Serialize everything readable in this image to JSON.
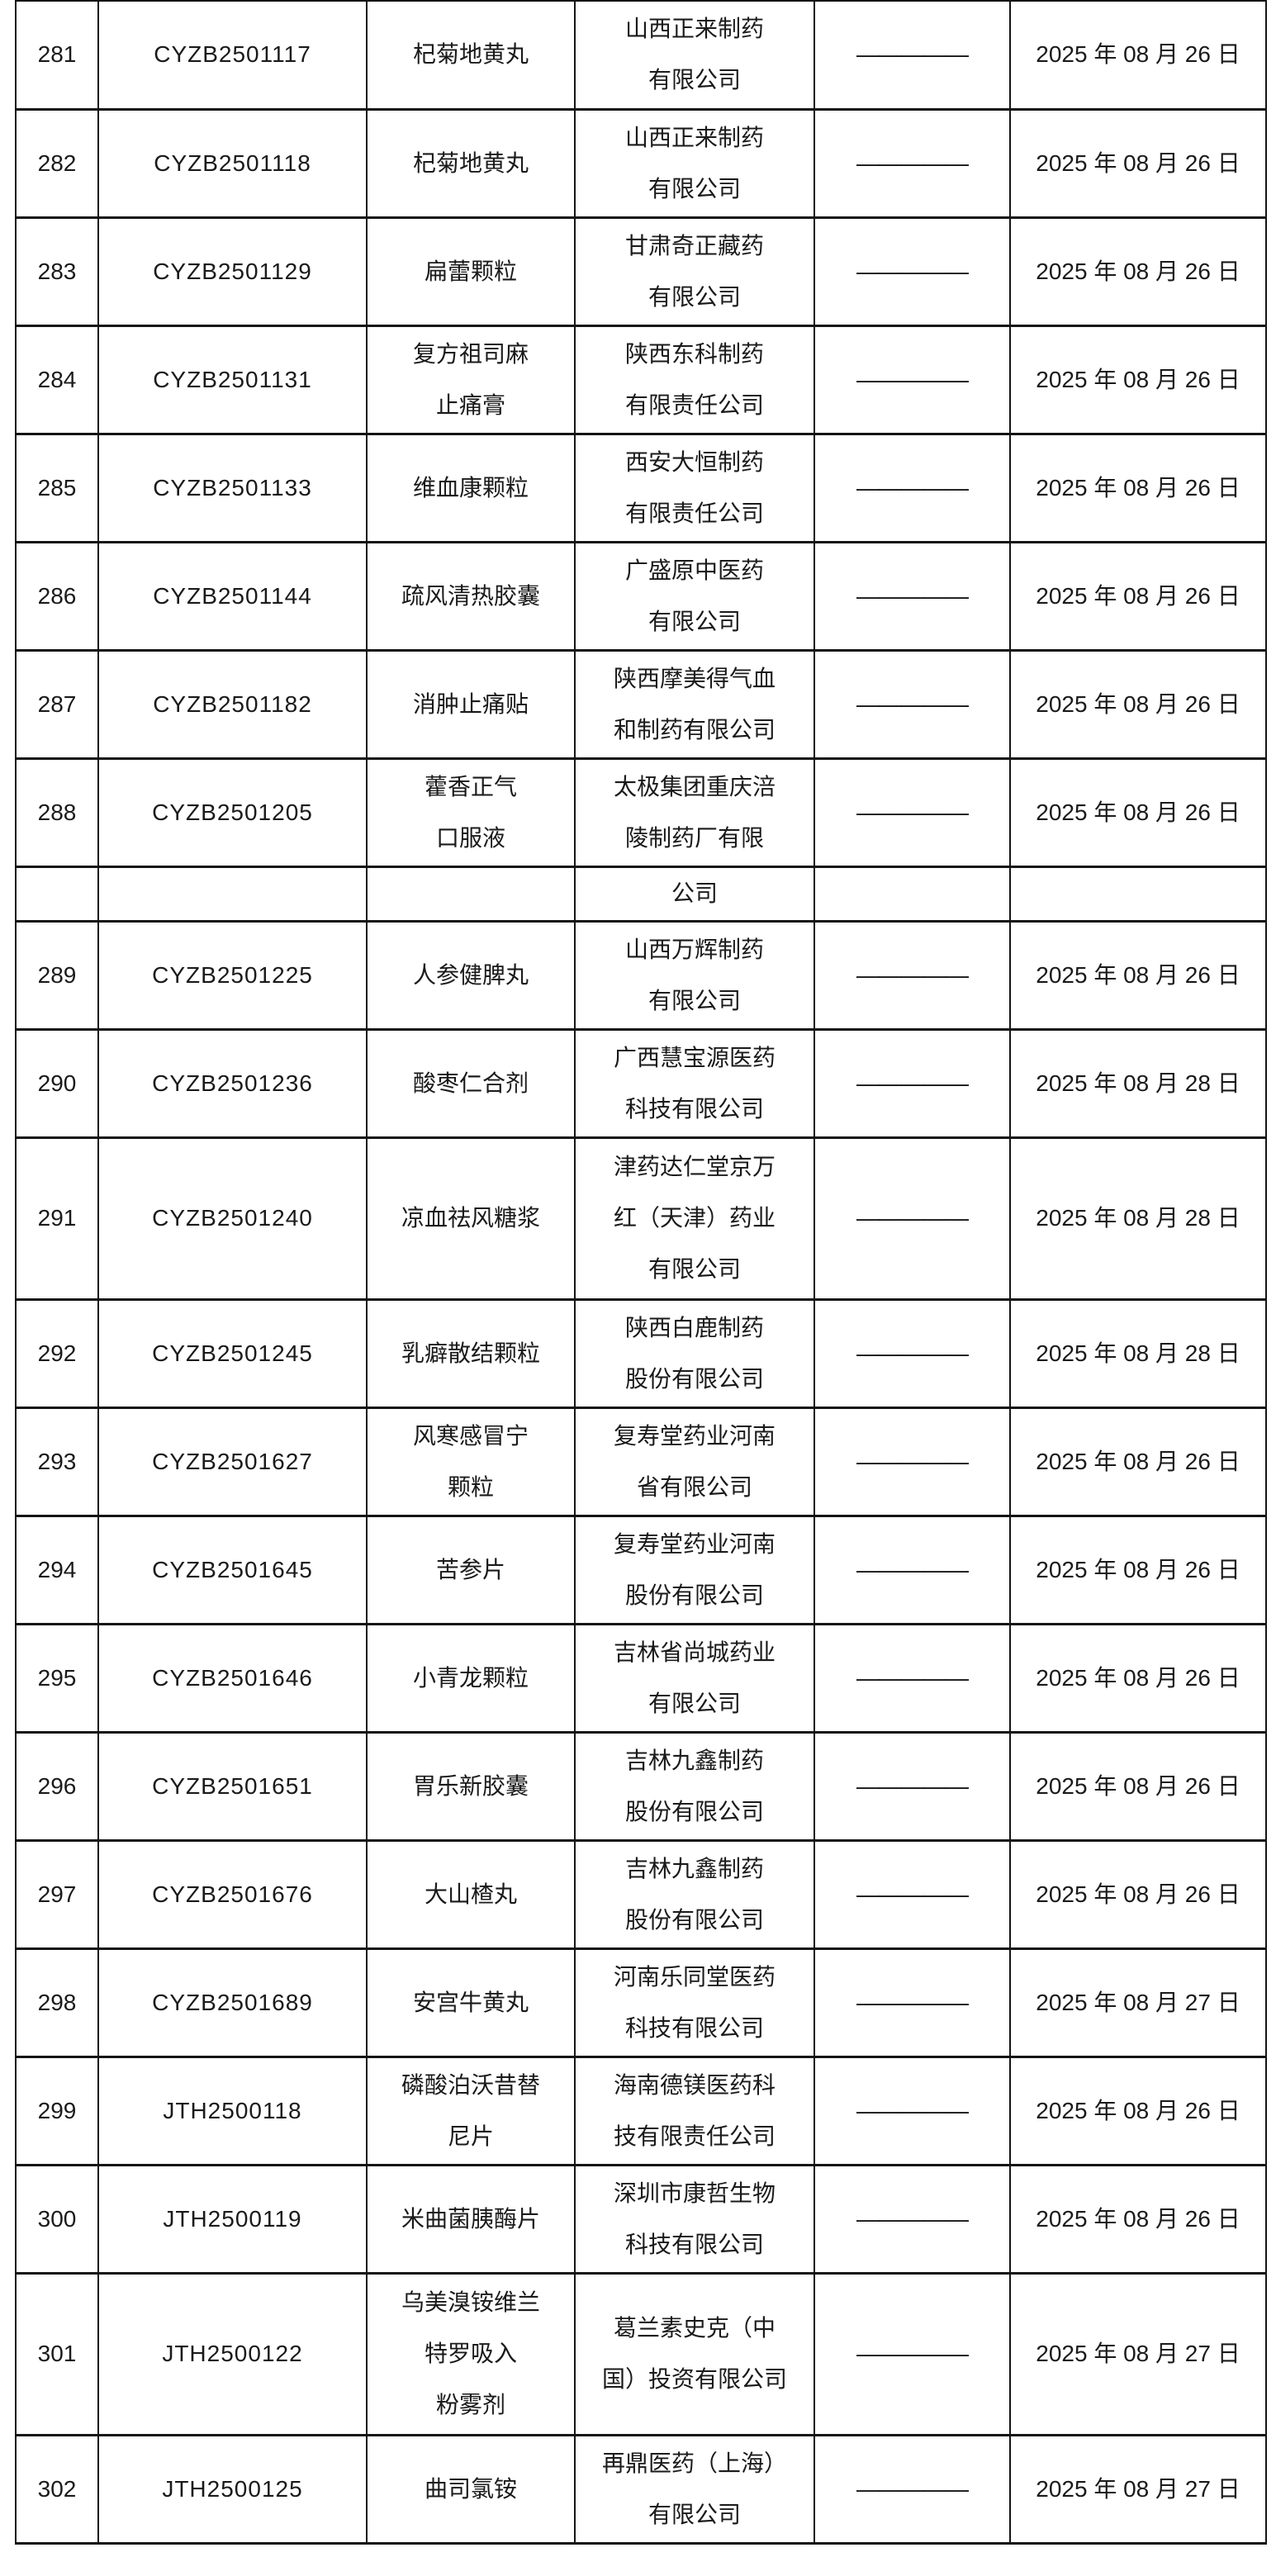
{
  "page": {
    "background": "#ffffff",
    "text_color": "#1a1a1a",
    "border_color": "#141414"
  },
  "table": {
    "rows": [
      {
        "no": "281",
        "reg": "CYZB2501117",
        "drug": [
          "杞菊地黄丸"
        ],
        "company": [
          "山西正来制药",
          "有限公司"
        ],
        "dash": "—————",
        "date": "2025 年 08 月 26 日"
      },
      {
        "no": "282",
        "reg": "CYZB2501118",
        "drug": [
          "杞菊地黄丸"
        ],
        "company": [
          "山西正来制药",
          "有限公司"
        ],
        "dash": "—————",
        "date": "2025 年 08 月 26 日"
      },
      {
        "no": "283",
        "reg": "CYZB2501129",
        "drug": [
          "扁蕾颗粒"
        ],
        "company": [
          "甘肃奇正藏药",
          "有限公司"
        ],
        "dash": "—————",
        "date": "2025 年 08 月 26 日"
      },
      {
        "no": "284",
        "reg": "CYZB2501131",
        "drug": [
          "复方祖司麻",
          "止痛膏"
        ],
        "company": [
          "陕西东科制药",
          "有限责任公司"
        ],
        "dash": "—————",
        "date": "2025 年 08 月 26 日"
      },
      {
        "no": "285",
        "reg": "CYZB2501133",
        "drug": [
          "维血康颗粒"
        ],
        "company": [
          "西安大恒制药",
          "有限责任公司"
        ],
        "dash": "—————",
        "date": "2025 年 08 月 26 日"
      },
      {
        "no": "286",
        "reg": "CYZB2501144",
        "drug": [
          "疏风清热胶囊"
        ],
        "company": [
          "广盛原中医药",
          "有限公司"
        ],
        "dash": "—————",
        "date": "2025 年 08 月 26 日"
      },
      {
        "no": "287",
        "reg": "CYZB2501182",
        "drug": [
          "消肿止痛贴"
        ],
        "company": [
          "陕西摩美得气血",
          "和制药有限公司"
        ],
        "dash": "—————",
        "date": "2025 年 08 月 26 日"
      },
      {
        "no": "288",
        "reg": "CYZB2501205",
        "drug": [
          "藿香正气",
          "口服液"
        ],
        "company": [
          "太极集团重庆涪",
          "陵制药厂有限"
        ],
        "dash": "—————",
        "date": "2025 年 08 月 26 日"
      },
      {
        "no": "",
        "reg": "",
        "drug": [],
        "company": [
          "公司"
        ],
        "dash": "",
        "date": ""
      },
      {
        "no": "289",
        "reg": "CYZB2501225",
        "drug": [
          "人参健脾丸"
        ],
        "company": [
          "山西万辉制药",
          "有限公司"
        ],
        "dash": "—————",
        "date": "2025 年 08 月 26 日"
      },
      {
        "no": "290",
        "reg": "CYZB2501236",
        "drug": [
          "酸枣仁合剂"
        ],
        "company": [
          "广西慧宝源医药",
          "科技有限公司"
        ],
        "dash": "—————",
        "date": "2025 年 08 月 28 日"
      },
      {
        "no": "291",
        "reg": "CYZB2501240",
        "drug": [
          "凉血祛风糖浆"
        ],
        "company": [
          "津药达仁堂京万",
          "红（天津）药业",
          "有限公司"
        ],
        "dash": "—————",
        "date": "2025 年 08 月 28 日"
      },
      {
        "no": "292",
        "reg": "CYZB2501245",
        "drug": [
          "乳癖散结颗粒"
        ],
        "company": [
          "陕西白鹿制药",
          "股份有限公司"
        ],
        "dash": "—————",
        "date": "2025 年 08 月 28 日"
      },
      {
        "no": "293",
        "reg": "CYZB2501627",
        "drug": [
          "风寒感冒宁",
          "颗粒"
        ],
        "company": [
          "复寿堂药业河南",
          "省有限公司"
        ],
        "dash": "—————",
        "date": "2025 年 08 月 26 日"
      },
      {
        "no": "294",
        "reg": "CYZB2501645",
        "drug": [
          "苦参片"
        ],
        "company": [
          "复寿堂药业河南",
          "股份有限公司"
        ],
        "dash": "—————",
        "date": "2025 年 08 月 26 日"
      },
      {
        "no": "295",
        "reg": "CYZB2501646",
        "drug": [
          "小青龙颗粒"
        ],
        "company": [
          "吉林省尚城药业",
          "有限公司"
        ],
        "dash": "—————",
        "date": "2025 年 08 月 26 日"
      },
      {
        "no": "296",
        "reg": "CYZB2501651",
        "drug": [
          "胃乐新胶囊"
        ],
        "company": [
          "吉林九鑫制药",
          "股份有限公司"
        ],
        "dash": "—————",
        "date": "2025 年 08 月 26 日"
      },
      {
        "no": "297",
        "reg": "CYZB2501676",
        "drug": [
          "大山楂丸"
        ],
        "company": [
          "吉林九鑫制药",
          "股份有限公司"
        ],
        "dash": "—————",
        "date": "2025 年 08 月 26 日"
      },
      {
        "no": "298",
        "reg": "CYZB2501689",
        "drug": [
          "安宫牛黄丸"
        ],
        "company": [
          "河南乐同堂医药",
          "科技有限公司"
        ],
        "dash": "—————",
        "date": "2025 年 08 月 27 日"
      },
      {
        "no": "299",
        "reg": "JTH2500118",
        "drug": [
          "磷酸泊沃昔替",
          "尼片"
        ],
        "company": [
          "海南德镁医药科",
          "技有限责任公司"
        ],
        "dash": "—————",
        "date": "2025 年 08 月 26 日"
      },
      {
        "no": "300",
        "reg": "JTH2500119",
        "drug": [
          "米曲菌胰酶片"
        ],
        "company": [
          "深圳市康哲生物",
          "科技有限公司"
        ],
        "dash": "—————",
        "date": "2025 年 08 月 26 日"
      },
      {
        "no": "301",
        "reg": "JTH2500122",
        "drug": [
          "乌美溴铵维兰",
          "特罗吸入",
          "粉雾剂"
        ],
        "company": [
          "葛兰素史克（中",
          "国）投资有限公司"
        ],
        "dash": "—————",
        "date": "2025 年 08 月 27 日"
      },
      {
        "no": "302",
        "reg": "JTH2500125",
        "drug": [
          "曲司氯铵"
        ],
        "company": [
          "再鼎医药（上海）",
          "有限公司"
        ],
        "dash": "—————",
        "date": "2025 年 08 月 27 日"
      }
    ]
  }
}
